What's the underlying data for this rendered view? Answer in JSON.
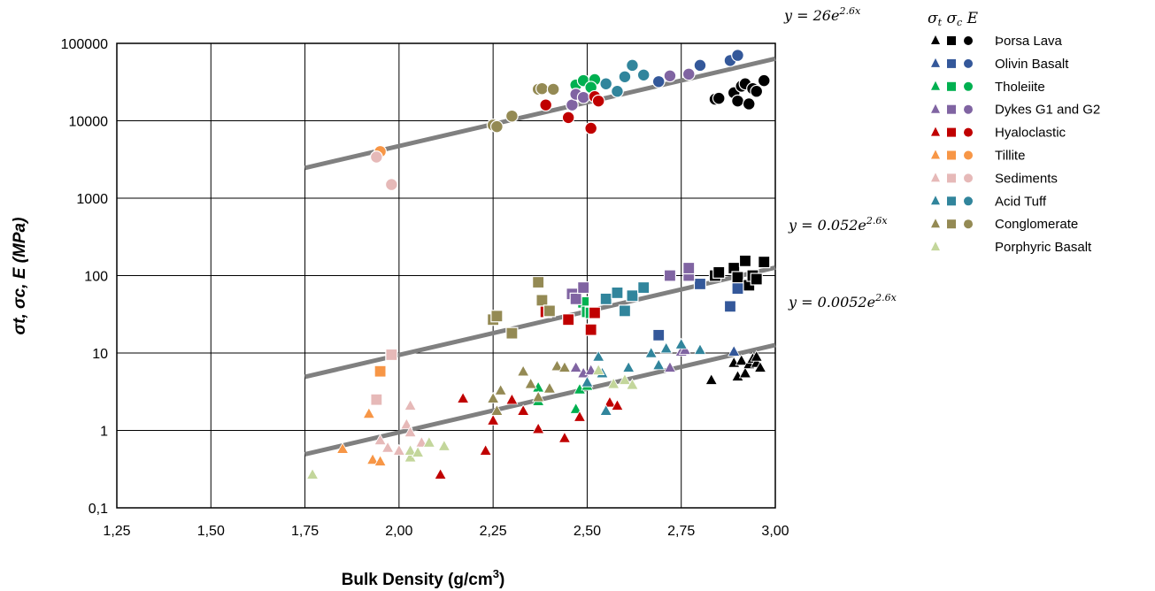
{
  "chart_data": {
    "type": "scatter",
    "xlabel": "Bulk Density (g/cm",
    "xlabel_sup": "3",
    "xlabel_close": ")",
    "ylabel": "σt, σc, E (MPa)",
    "x_ticks": [
      "1,25",
      "1,50",
      "1,75",
      "2,00",
      "2,25",
      "2,50",
      "2,75",
      "3,00"
    ],
    "y_ticks": [
      "0,1",
      "1",
      "10",
      "100",
      "1000",
      "10000",
      "100000"
    ],
    "xlim": [
      1.25,
      3.0
    ],
    "ylim": [
      0.1,
      100000
    ],
    "y_scale": "log",
    "grid": true,
    "legend_position": "right",
    "legend_header": {
      "sigma_t": "σ",
      "t": "t",
      "sigma_c": "σ",
      "c": "c",
      "E": "E"
    },
    "series": [
      {
        "name": "Þorsa Lava",
        "color": "#000000",
        "tensile": [
          [
            2.83,
            4.5
          ],
          [
            2.89,
            7.5
          ],
          [
            2.9,
            5
          ],
          [
            2.91,
            8
          ],
          [
            2.92,
            5.5
          ],
          [
            2.93,
            7.2
          ],
          [
            2.94,
            8.5
          ],
          [
            2.95,
            7.5
          ],
          [
            2.96,
            6.5
          ],
          [
            2.95,
            9
          ]
        ],
        "compressive": [
          [
            2.84,
            100
          ],
          [
            2.85,
            110
          ],
          [
            2.89,
            125
          ],
          [
            2.9,
            95
          ],
          [
            2.92,
            155
          ],
          [
            2.93,
            75
          ],
          [
            2.94,
            100
          ],
          [
            2.95,
            90
          ],
          [
            2.97,
            150
          ]
        ],
        "modulus": [
          [
            2.84,
            19000
          ],
          [
            2.85,
            19500
          ],
          [
            2.89,
            23000
          ],
          [
            2.9,
            18000
          ],
          [
            2.91,
            28000
          ],
          [
            2.92,
            30000
          ],
          [
            2.93,
            16500
          ],
          [
            2.94,
            26000
          ],
          [
            2.95,
            24000
          ],
          [
            2.97,
            33000
          ]
        ]
      },
      {
        "name": "Olivin Basalt",
        "color": "#34589a",
        "tensile": [
          [
            2.89,
            10.5
          ]
        ],
        "compressive": [
          [
            2.69,
            17
          ],
          [
            2.8,
            78
          ],
          [
            2.88,
            40
          ],
          [
            2.9,
            68
          ]
        ],
        "modulus": [
          [
            2.69,
            32000
          ],
          [
            2.8,
            52000
          ],
          [
            2.88,
            60000
          ],
          [
            2.9,
            70000
          ]
        ]
      },
      {
        "name": "Tholeiite",
        "color": "#00b050",
        "tensile": [
          [
            2.37,
            3.6
          ],
          [
            2.37,
            2.4
          ],
          [
            2.47,
            1.9
          ],
          [
            2.48,
            3.4
          ],
          [
            2.5,
            3.8
          ]
        ],
        "compressive": [
          [
            2.49,
            45
          ],
          [
            2.5,
            34
          ],
          [
            2.51,
            33
          ]
        ],
        "modulus": [
          [
            2.47,
            29000
          ],
          [
            2.49,
            33000
          ],
          [
            2.52,
            34000
          ],
          [
            2.51,
            27000
          ]
        ]
      },
      {
        "name": "Dykes G1 and G2",
        "color": "#8064a2",
        "tensile": [
          [
            2.47,
            6.5
          ],
          [
            2.49,
            5.5
          ],
          [
            2.51,
            6
          ],
          [
            2.72,
            6.5
          ],
          [
            2.75,
            10.5
          ],
          [
            2.76,
            11
          ]
        ],
        "compressive": [
          [
            2.46,
            58
          ],
          [
            2.47,
            50
          ],
          [
            2.49,
            70
          ],
          [
            2.72,
            100
          ],
          [
            2.77,
            100
          ],
          [
            2.77,
            125
          ]
        ],
        "modulus": [
          [
            2.46,
            16000
          ],
          [
            2.47,
            22000
          ],
          [
            2.49,
            20000
          ],
          [
            2.72,
            38000
          ],
          [
            2.77,
            40000
          ]
        ]
      },
      {
        "name": "Hyaloclastic",
        "color": "#c00000",
        "tensile": [
          [
            2.11,
            0.27
          ],
          [
            2.17,
            2.6
          ],
          [
            2.23,
            0.55
          ],
          [
            2.25,
            1.35
          ],
          [
            2.3,
            2.5
          ],
          [
            2.33,
            1.8
          ],
          [
            2.37,
            1.05
          ],
          [
            2.44,
            0.8
          ],
          [
            2.48,
            1.5
          ],
          [
            2.56,
            2.3
          ],
          [
            2.58,
            2.1
          ]
        ],
        "compressive": [
          [
            2.39,
            34
          ],
          [
            2.45,
            27
          ],
          [
            2.51,
            20
          ],
          [
            2.52,
            33
          ]
        ],
        "modulus": [
          [
            2.39,
            16000
          ],
          [
            2.45,
            11000
          ],
          [
            2.51,
            8000
          ],
          [
            2.52,
            20500
          ],
          [
            2.53,
            18000
          ]
        ]
      },
      {
        "name": "Tillite",
        "color": "#f79646",
        "tensile": [
          [
            1.85,
            0.58
          ],
          [
            1.92,
            1.65
          ],
          [
            1.93,
            0.42
          ],
          [
            1.95,
            0.4
          ]
        ],
        "compressive": [
          [
            1.95,
            5.8
          ]
        ],
        "modulus": [
          [
            1.95,
            4000
          ]
        ]
      },
      {
        "name": "Sediments",
        "color": "#e6b9b8",
        "tensile": [
          [
            1.95,
            0.75
          ],
          [
            1.97,
            0.6
          ],
          [
            2.0,
            0.55
          ],
          [
            2.02,
            1.2
          ],
          [
            2.03,
            2.1
          ],
          [
            2.03,
            0.95
          ],
          [
            2.06,
            0.7
          ]
        ],
        "compressive": [
          [
            1.94,
            2.5
          ],
          [
            1.98,
            9.5
          ]
        ],
        "modulus": [
          [
            1.94,
            3400
          ],
          [
            1.98,
            1500
          ]
        ]
      },
      {
        "name": "Acid Tuff",
        "color": "#31859c",
        "tensile": [
          [
            2.5,
            4.2
          ],
          [
            2.53,
            9
          ],
          [
            2.54,
            5.5
          ],
          [
            2.55,
            1.8
          ],
          [
            2.61,
            6.5
          ],
          [
            2.67,
            10
          ],
          [
            2.69,
            7
          ],
          [
            2.71,
            11.5
          ],
          [
            2.75,
            13
          ],
          [
            2.8,
            11
          ]
        ],
        "compressive": [
          [
            2.55,
            50
          ],
          [
            2.58,
            60
          ],
          [
            2.6,
            35
          ],
          [
            2.62,
            55
          ],
          [
            2.65,
            70
          ]
        ],
        "modulus": [
          [
            2.55,
            30000
          ],
          [
            2.58,
            24000
          ],
          [
            2.6,
            37000
          ],
          [
            2.62,
            52000
          ],
          [
            2.65,
            39000
          ]
        ]
      },
      {
        "name": "Conglomerate",
        "color": "#948a54",
        "tensile": [
          [
            2.25,
            2.6
          ],
          [
            2.26,
            1.8
          ],
          [
            2.27,
            3.3
          ],
          [
            2.33,
            5.8
          ],
          [
            2.35,
            4
          ],
          [
            2.37,
            2.7
          ],
          [
            2.4,
            3.5
          ],
          [
            2.42,
            6.8
          ],
          [
            2.44,
            6.5
          ]
        ],
        "compressive": [
          [
            2.25,
            27
          ],
          [
            2.26,
            30
          ],
          [
            2.3,
            18
          ],
          [
            2.37,
            82
          ],
          [
            2.38,
            48
          ],
          [
            2.4,
            35
          ]
        ],
        "modulus": [
          [
            2.25,
            8800
          ],
          [
            2.26,
            8400
          ],
          [
            2.3,
            11500
          ],
          [
            2.37,
            25500
          ],
          [
            2.38,
            26000
          ],
          [
            2.41,
            25500
          ]
        ]
      },
      {
        "name": "Porphyric Basalt",
        "color": "#c3d69b",
        "tensile": [
          [
            1.77,
            0.27
          ],
          [
            2.03,
            0.45
          ],
          [
            2.03,
            0.55
          ],
          [
            2.05,
            0.52
          ],
          [
            2.08,
            0.7
          ],
          [
            2.12,
            0.63
          ],
          [
            2.57,
            4
          ],
          [
            2.6,
            4.5
          ],
          [
            2.62,
            3.9
          ],
          [
            2.53,
            6
          ]
        ],
        "compressive": [],
        "modulus": []
      }
    ],
    "trendlines": [
      {
        "a": 26,
        "b": 2.6,
        "x_range": [
          1.75,
          3.0
        ],
        "equation_text": "y = 26e",
        "exponent_text": "2.6x"
      },
      {
        "a": 0.052,
        "b": 2.6,
        "x_range": [
          1.75,
          3.0
        ],
        "equation_text": "y = 0.052e",
        "exponent_text": "2.6x"
      },
      {
        "a": 0.0052,
        "b": 2.6,
        "x_range": [
          1.75,
          3.0
        ],
        "equation_text": "y = 0.0052e",
        "exponent_text": "2.6x"
      }
    ],
    "trendline_color": "#808080"
  }
}
